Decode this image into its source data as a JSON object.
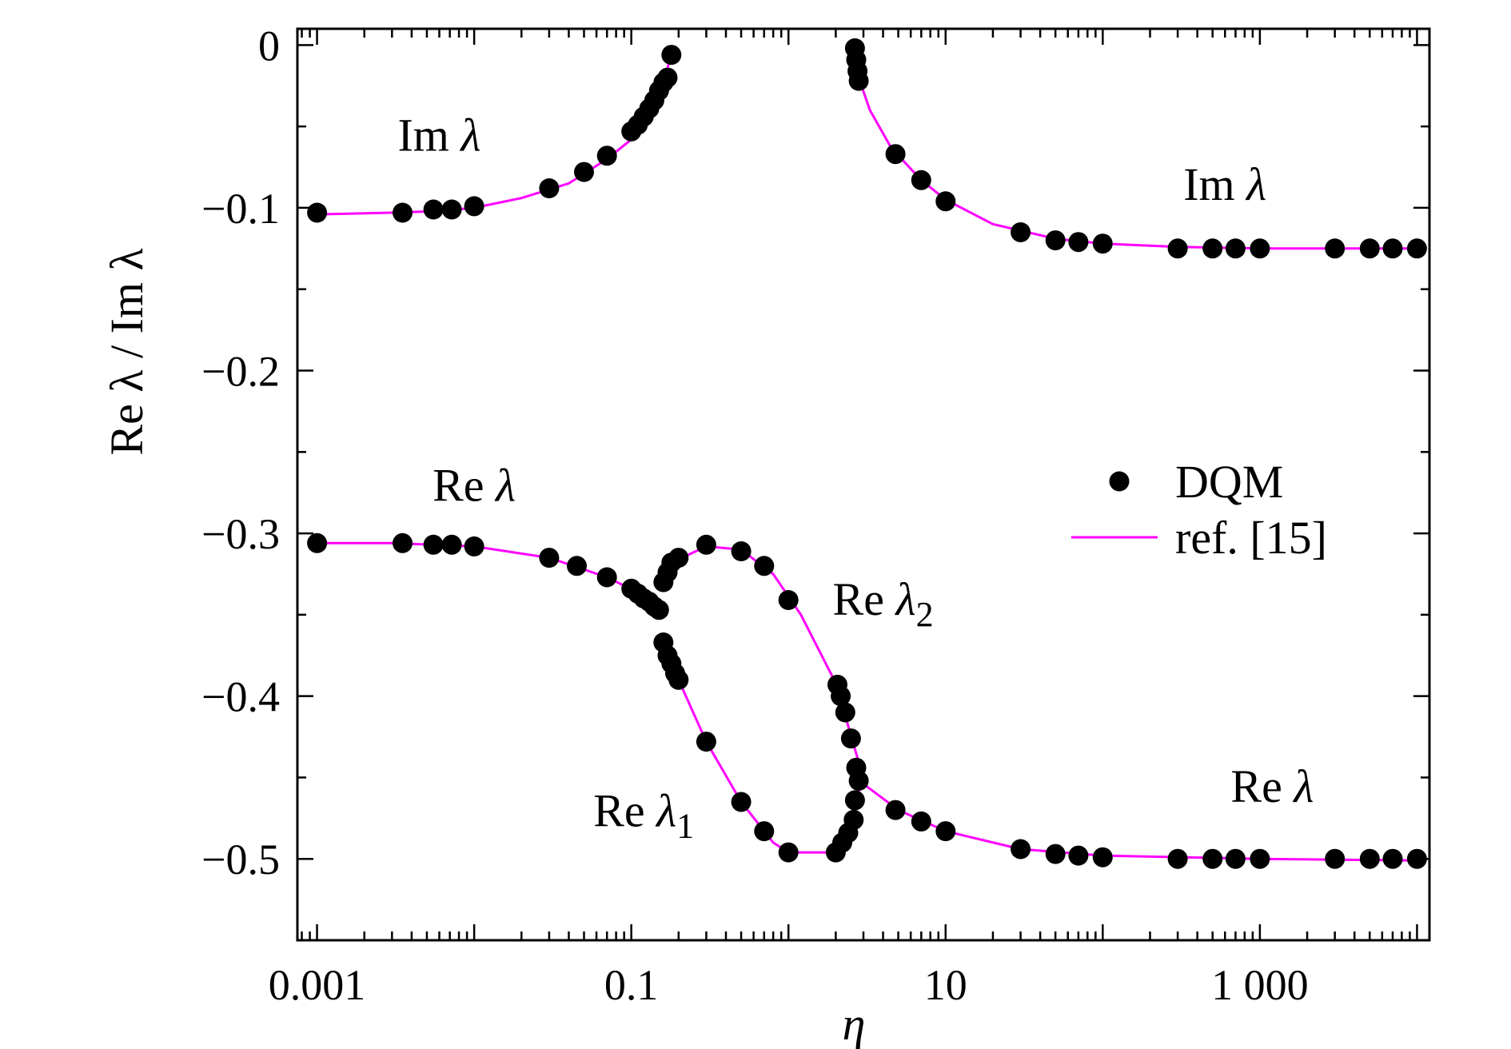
{
  "chart_data": {
    "type": "scatter",
    "xlabel": "η",
    "ylabel": "Re λ / Im λ",
    "xscale": "log",
    "xlim": [
      0.00075,
      12000
    ],
    "ylim": [
      -0.55,
      0.01
    ],
    "xticks": [
      {
        "value": 0.001,
        "label": "0.001"
      },
      {
        "value": 0.1,
        "label": "0.1"
      },
      {
        "value": 10,
        "label": "10"
      },
      {
        "value": 1000,
        "label": "1 000"
      }
    ],
    "yticks": [
      {
        "value": 0,
        "label": "0"
      },
      {
        "value": -0.1,
        "label": "−0.1"
      },
      {
        "value": -0.2,
        "label": "−0.2"
      },
      {
        "value": -0.3,
        "label": "−0.3"
      },
      {
        "value": -0.4,
        "label": "−0.4"
      },
      {
        "value": -0.5,
        "label": "−0.5"
      }
    ],
    "grid": false,
    "legend_position": "right",
    "legend": [
      {
        "name": "DQM",
        "marker": "circle"
      },
      {
        "name": "ref. [15]",
        "marker": "line"
      }
    ],
    "annotations": [
      {
        "text": "Im λ",
        "x": 0.006,
        "y": -0.065
      },
      {
        "text": "Im λ",
        "x": 600,
        "y": -0.095
      },
      {
        "text": "Re λ",
        "x": 0.01,
        "y": -0.28
      },
      {
        "text": "Re λ₂",
        "x": 4,
        "y": -0.35
      },
      {
        "text": "Re λ₁",
        "x": 0.12,
        "y": -0.48
      },
      {
        "text": "Re λ",
        "x": 1200,
        "y": -0.465
      }
    ],
    "series": [
      {
        "name": "DQM",
        "style": "markers",
        "points": [
          [
            0.001,
            -0.103
          ],
          [
            0.0035,
            -0.103
          ],
          [
            0.0055,
            -0.101
          ],
          [
            0.0072,
            -0.101
          ],
          [
            0.01,
            -0.099
          ],
          [
            0.03,
            -0.088
          ],
          [
            0.05,
            -0.078
          ],
          [
            0.07,
            -0.068
          ],
          [
            0.1,
            -0.053
          ],
          [
            0.11,
            -0.049
          ],
          [
            0.12,
            -0.044
          ],
          [
            0.13,
            -0.039
          ],
          [
            0.14,
            -0.034
          ],
          [
            0.15,
            -0.028
          ],
          [
            0.16,
            -0.023
          ],
          [
            0.17,
            -0.02
          ],
          [
            0.18,
            -0.006
          ],
          [
            2.65,
            -0.002
          ],
          [
            2.7,
            -0.009
          ],
          [
            2.75,
            -0.016
          ],
          [
            2.8,
            -0.022
          ],
          [
            4.8,
            -0.067
          ],
          [
            7,
            -0.083
          ],
          [
            10,
            -0.096
          ],
          [
            30,
            -0.115
          ],
          [
            50,
            -0.12
          ],
          [
            70,
            -0.121
          ],
          [
            100,
            -0.122
          ],
          [
            300,
            -0.125
          ],
          [
            500,
            -0.125
          ],
          [
            700,
            -0.125
          ],
          [
            1000,
            -0.125
          ],
          [
            3000,
            -0.125
          ],
          [
            5000,
            -0.125
          ],
          [
            7000,
            -0.125
          ],
          [
            10000,
            -0.125
          ],
          [
            0.001,
            -0.306
          ],
          [
            0.0035,
            -0.306
          ],
          [
            0.0055,
            -0.307
          ],
          [
            0.0072,
            -0.307
          ],
          [
            0.01,
            -0.308
          ],
          [
            0.03,
            -0.315
          ],
          [
            0.045,
            -0.32
          ],
          [
            0.07,
            -0.327
          ],
          [
            0.1,
            -0.334
          ],
          [
            0.11,
            -0.337
          ],
          [
            0.12,
            -0.34
          ],
          [
            0.13,
            -0.342
          ],
          [
            0.14,
            -0.345
          ],
          [
            0.15,
            -0.347
          ],
          [
            0.16,
            -0.33
          ],
          [
            0.17,
            -0.324
          ],
          [
            0.18,
            -0.318
          ],
          [
            0.2,
            -0.315
          ],
          [
            0.3,
            -0.307
          ],
          [
            0.5,
            -0.311
          ],
          [
            0.7,
            -0.32
          ],
          [
            1,
            -0.341
          ],
          [
            0.16,
            -0.367
          ],
          [
            0.17,
            -0.375
          ],
          [
            0.18,
            -0.38
          ],
          [
            0.19,
            -0.386
          ],
          [
            0.2,
            -0.39
          ],
          [
            0.3,
            -0.428
          ],
          [
            0.5,
            -0.465
          ],
          [
            0.7,
            -0.483
          ],
          [
            1,
            -0.496
          ],
          [
            2,
            -0.496
          ],
          [
            2.2,
            -0.49
          ],
          [
            2.4,
            -0.484
          ],
          [
            2.6,
            -0.476
          ],
          [
            2.65,
            -0.464
          ],
          [
            2.8,
            -0.452
          ],
          [
            2.7,
            -0.444
          ],
          [
            2.5,
            -0.426
          ],
          [
            2.3,
            -0.41
          ],
          [
            2.15,
            -0.4
          ],
          [
            2.05,
            -0.393
          ],
          [
            4.8,
            -0.47
          ],
          [
            7,
            -0.477
          ],
          [
            10,
            -0.483
          ],
          [
            30,
            -0.494
          ],
          [
            50,
            -0.497
          ],
          [
            70,
            -0.498
          ],
          [
            100,
            -0.499
          ],
          [
            300,
            -0.5
          ],
          [
            500,
            -0.5
          ],
          [
            700,
            -0.5
          ],
          [
            1000,
            -0.5
          ],
          [
            3000,
            -0.5
          ],
          [
            5000,
            -0.5
          ],
          [
            7000,
            -0.5
          ],
          [
            10000,
            -0.5
          ]
        ]
      },
      {
        "name": "ref. [15]",
        "style": "line",
        "color": "#ff00ff",
        "segments": [
          [
            [
              0.001,
              -0.104
            ],
            [
              0.003,
              -0.103
            ],
            [
              0.006,
              -0.102
            ],
            [
              0.01,
              -0.1
            ],
            [
              0.02,
              -0.094
            ],
            [
              0.04,
              -0.085
            ],
            [
              0.07,
              -0.07
            ],
            [
              0.1,
              -0.058
            ],
            [
              0.13,
              -0.043
            ],
            [
              0.16,
              -0.024
            ],
            [
              0.18,
              -0.005
            ]
          ],
          [
            [
              2.6,
              -0.003
            ],
            [
              2.8,
              -0.02
            ],
            [
              3.3,
              -0.04
            ],
            [
              4.5,
              -0.063
            ],
            [
              7,
              -0.083
            ],
            [
              10,
              -0.095
            ],
            [
              20,
              -0.11
            ],
            [
              50,
              -0.119
            ],
            [
              100,
              -0.122
            ],
            [
              300,
              -0.124
            ],
            [
              1000,
              -0.125
            ],
            [
              10000,
              -0.125
            ]
          ],
          [
            [
              0.001,
              -0.306
            ],
            [
              0.003,
              -0.306
            ],
            [
              0.01,
              -0.308
            ],
            [
              0.03,
              -0.315
            ],
            [
              0.07,
              -0.327
            ],
            [
              0.12,
              -0.338
            ],
            [
              0.155,
              -0.347
            ]
          ],
          [
            [
              0.155,
              -0.33
            ],
            [
              0.2,
              -0.316
            ],
            [
              0.3,
              -0.308
            ],
            [
              0.5,
              -0.31
            ],
            [
              0.8,
              -0.325
            ],
            [
              1.2,
              -0.35
            ],
            [
              2,
              -0.392
            ],
            [
              2.6,
              -0.43
            ],
            [
              3.1,
              -0.455
            ]
          ],
          [
            [
              3.1,
              -0.455
            ],
            [
              5,
              -0.47
            ],
            [
              10,
              -0.483
            ],
            [
              30,
              -0.494
            ],
            [
              100,
              -0.498
            ],
            [
              1000,
              -0.5
            ],
            [
              10000,
              -0.501
            ]
          ],
          [
            [
              0.155,
              -0.367
            ],
            [
              0.2,
              -0.39
            ],
            [
              0.3,
              -0.428
            ],
            [
              0.5,
              -0.465
            ],
            [
              0.8,
              -0.49
            ],
            [
              1,
              -0.496
            ],
            [
              2,
              -0.496
            ],
            [
              2.5,
              -0.483
            ],
            [
              2.8,
              -0.46
            ],
            [
              2.9,
              -0.45
            ]
          ]
        ]
      }
    ]
  }
}
